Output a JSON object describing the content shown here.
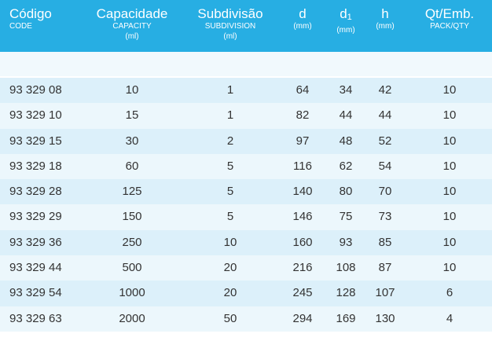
{
  "header": {
    "codigo": {
      "main": "Código",
      "sub": "CODE"
    },
    "capacidade": {
      "main": "Capacidade",
      "sub": "CAPACITY",
      "unit": "(ml)"
    },
    "subdivisao": {
      "main": "Subdivisão",
      "sub": "SUBDIVISION",
      "unit": "(ml)"
    },
    "d": {
      "main": "d",
      "unit": "(mm)"
    },
    "d1": {
      "main": "d",
      "subscript": "1",
      "unit": "(mm)"
    },
    "h": {
      "main": "h",
      "unit": "(mm)"
    },
    "qty": {
      "main": "Qt/Emb.",
      "sub": "PACK/QTY"
    }
  },
  "rows": [
    {
      "code": "93 329 08",
      "capacity": "10",
      "subdivision": "1",
      "d": "64",
      "d1": "34",
      "h": "42",
      "qty": "10"
    },
    {
      "code": "93 329 10",
      "capacity": "15",
      "subdivision": "1",
      "d": "82",
      "d1": "44",
      "h": "44",
      "qty": "10"
    },
    {
      "code": "93 329 15",
      "capacity": "30",
      "subdivision": "2",
      "d": "97",
      "d1": "48",
      "h": "52",
      "qty": "10"
    },
    {
      "code": "93 329 18",
      "capacity": "60",
      "subdivision": "5",
      "d": "116",
      "d1": "62",
      "h": "54",
      "qty": "10"
    },
    {
      "code": "93 329 28",
      "capacity": "125",
      "subdivision": "5",
      "d": "140",
      "d1": "80",
      "h": "70",
      "qty": "10"
    },
    {
      "code": "93 329 29",
      "capacity": "150",
      "subdivision": "5",
      "d": "146",
      "d1": "75",
      "h": "73",
      "qty": "10"
    },
    {
      "code": "93 329 36",
      "capacity": "250",
      "subdivision": "10",
      "d": "160",
      "d1": "93",
      "h": "85",
      "qty": "10"
    },
    {
      "code": "93 329 44",
      "capacity": "500",
      "subdivision": "20",
      "d": "216",
      "d1": "108",
      "h": "87",
      "qty": "10"
    },
    {
      "code": "93 329 54",
      "capacity": "1000",
      "subdivision": "20",
      "d": "245",
      "d1": "128",
      "h": "107",
      "qty": "6"
    },
    {
      "code": "93 329 63",
      "capacity": "2000",
      "subdivision": "50",
      "d": "294",
      "d1": "169",
      "h": "130",
      "qty": "4"
    }
  ]
}
